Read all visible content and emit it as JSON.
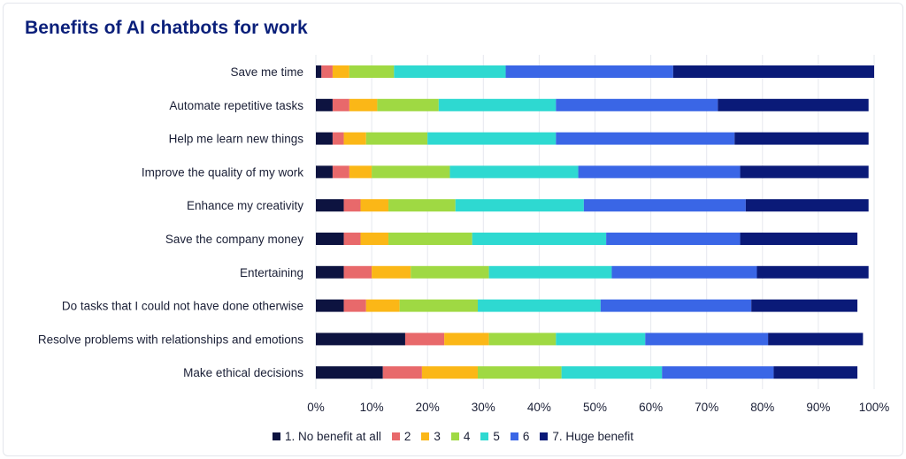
{
  "chart_data": {
    "type": "bar",
    "orientation": "horizontal",
    "stacked": true,
    "title": "Benefits of AI chatbots for work",
    "categories": [
      "Save me time",
      "Automate repetitive tasks",
      "Help me learn new things",
      "Improve the quality of my work",
      "Enhance my creativity",
      "Save the company money",
      "Entertaining",
      "Do tasks that I could not have done otherwise",
      "Resolve problems with relationships and emotions",
      "Make ethical decisions"
    ],
    "series": [
      {
        "name": "1. No benefit at all",
        "color": "#0d1340",
        "values": [
          1,
          3,
          3,
          3,
          5,
          5,
          5,
          5,
          16,
          12
        ]
      },
      {
        "name": "2",
        "color": "#e8696b",
        "values": [
          2,
          3,
          2,
          3,
          3,
          3,
          5,
          4,
          7,
          7
        ]
      },
      {
        "name": "3",
        "color": "#fbb717",
        "values": [
          3,
          5,
          4,
          4,
          5,
          5,
          7,
          6,
          8,
          10
        ]
      },
      {
        "name": "4",
        "color": "#9fd943",
        "values": [
          8,
          11,
          11,
          14,
          12,
          15,
          14,
          14,
          12,
          15
        ]
      },
      {
        "name": "5",
        "color": "#2ed9d1",
        "values": [
          20,
          21,
          23,
          23,
          23,
          24,
          22,
          22,
          16,
          18
        ]
      },
      {
        "name": "6",
        "color": "#3a66e6",
        "values": [
          30,
          29,
          32,
          29,
          29,
          24,
          26,
          27,
          22,
          20
        ]
      },
      {
        "name": "7. Huge benefit",
        "color": "#0a1a78",
        "values": [
          36,
          27,
          24,
          23,
          22,
          21,
          20,
          19,
          17,
          15
        ]
      }
    ],
    "xlim": [
      0,
      100
    ],
    "x_ticks": [
      "0%",
      "10%",
      "20%",
      "30%",
      "40%",
      "50%",
      "60%",
      "70%",
      "80%",
      "90%",
      "100%"
    ],
    "grid": true,
    "legend_position": "bottom"
  }
}
